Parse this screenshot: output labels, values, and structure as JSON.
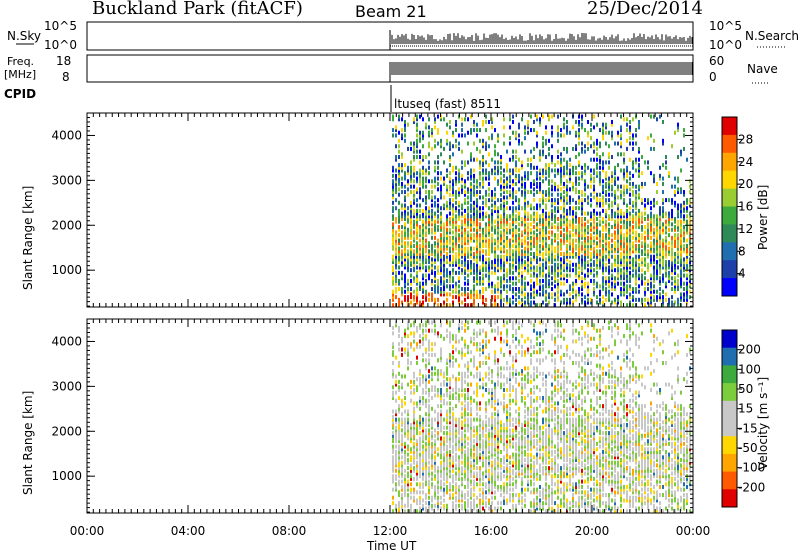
{
  "header": {
    "station": "Buckland Park (fitACF)",
    "beam": "Beam 21",
    "date": "25/Dec/2014"
  },
  "top_panels": {
    "nsky_label": "N.Sky",
    "nsky_ticks": [
      "10^5",
      "10^0"
    ],
    "nsearch_label": "N.Search",
    "nsearch_ticks": [
      "10^5",
      "10^0"
    ],
    "freq_label": "Freq.",
    "freq_unit": "[MHz]",
    "freq_ticks": [
      "18",
      "8"
    ],
    "nave_label": "Nave",
    "nave_ticks": [
      "60",
      "0"
    ],
    "cpid_label": "CPID",
    "cpid_text": "ltuseq (fast) 8511"
  },
  "chart_data": [
    {
      "type": "heatmap",
      "name": "power-panel",
      "ylabel": "Slant Range [km]",
      "xlabel": "Time UT",
      "x_ticks": [
        "00:00",
        "04:00",
        "08:00",
        "12:00",
        "16:00",
        "20:00",
        "00:00"
      ],
      "xlim_hours": [
        0,
        24
      ],
      "y_ticks": [
        1000,
        2000,
        3000,
        4000
      ],
      "ylim": [
        180,
        4500
      ],
      "data_start_hour": 12,
      "colorbar": {
        "label": "Power [dB]",
        "ticks": [
          "28",
          "24",
          "20",
          "16",
          "12",
          "8",
          "4"
        ],
        "colors": [
          "#e00000",
          "#ff5a00",
          "#ffa500",
          "#ffd700",
          "#9acd32",
          "#3caa3c",
          "#2e8b57",
          "#1f6fb0",
          "#1c3faa",
          "#0000ff"
        ]
      },
      "bands": [
        {
          "range_km": [
            200,
            500
          ],
          "level": "high"
        },
        {
          "range_km": [
            500,
            1000
          ],
          "level": "low-medium"
        },
        {
          "range_km": [
            1200,
            2200
          ],
          "level": "medium-high"
        },
        {
          "range_km": [
            2200,
            3200
          ],
          "level": "medium"
        },
        {
          "range_km": [
            3200,
            4500
          ],
          "level": "low"
        }
      ]
    },
    {
      "type": "heatmap",
      "name": "velocity-panel",
      "ylabel": "Slant Range [km]",
      "xlabel": "Time UT",
      "x_ticks": [
        "00:00",
        "04:00",
        "08:00",
        "12:00",
        "16:00",
        "20:00",
        "00:00"
      ],
      "xlim_hours": [
        0,
        24
      ],
      "y_ticks": [
        1000,
        2000,
        3000,
        4000
      ],
      "ylim": [
        180,
        4500
      ],
      "data_start_hour": 12,
      "colorbar": {
        "label": "Velocity [m s⁻¹]",
        "ticks": [
          "200",
          "100",
          "50",
          "15",
          "-15",
          "-50",
          "-100",
          "-200"
        ],
        "colors": [
          "#0000cd",
          "#1f6fb0",
          "#3caa3c",
          "#7ccd3c",
          "#c8c8c8",
          "#c8c8c8",
          "#ffd700",
          "#ffa500",
          "#ff5a00",
          "#e00000"
        ]
      }
    }
  ],
  "time_axis": {
    "label": "Time UT",
    "ticks": [
      "00:00",
      "04:00",
      "08:00",
      "12:00",
      "16:00",
      "20:00",
      "00:00"
    ]
  }
}
